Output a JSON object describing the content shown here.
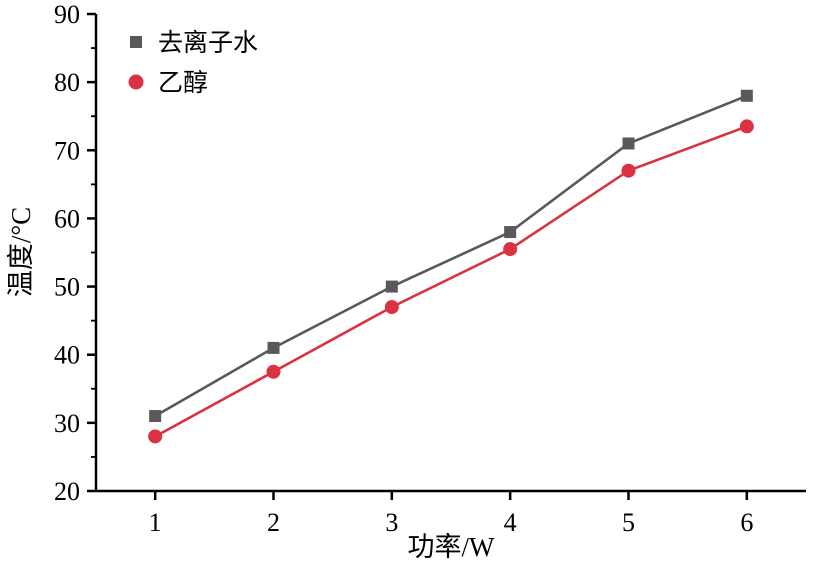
{
  "chart_data": {
    "type": "line",
    "title": "",
    "xlabel": "功率/W",
    "ylabel": "温度/°C",
    "x": [
      1,
      2,
      3,
      4,
      5,
      6
    ],
    "xlim": [
      0.5,
      6.5
    ],
    "ylim": [
      20,
      90
    ],
    "x_ticks": [
      1,
      2,
      3,
      4,
      5,
      6
    ],
    "y_ticks": [
      20,
      30,
      40,
      50,
      60,
      70,
      80,
      90
    ],
    "grid": false,
    "legend_position": "top-left-inside",
    "axis_color": "#000000",
    "series": [
      {
        "name": "去离子水",
        "marker": "square",
        "color": "#595959",
        "values": [
          31,
          41,
          50,
          58,
          71,
          78
        ]
      },
      {
        "name": "乙醇",
        "marker": "circle",
        "color": "#d93240",
        "values": [
          28,
          37.5,
          47,
          55.5,
          67,
          73.5
        ]
      }
    ]
  }
}
